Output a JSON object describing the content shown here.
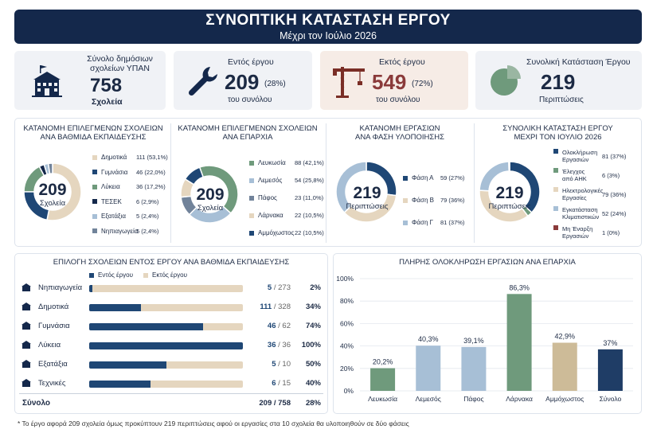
{
  "header": {
    "title": "ΣΥΝΟΠΤΙΚΗ ΚΑΤΑΣΤΑΣΗ ΕΡΓΟΥ",
    "subtitle": "Μέχρι τον Ιούλιο 2026"
  },
  "kpis": [
    {
      "label1": "Σύνολο δημόσιων",
      "label2": "σχολείων ΥΠΑΝ",
      "value": "758",
      "sub": "Σχολεία",
      "icon": "school-icon"
    },
    {
      "label": "Εντός έργου",
      "value": "209",
      "pct": "(28%)",
      "sub": "του συνόλου",
      "icon": "wrench-icon"
    },
    {
      "label": "Εκτός έργου",
      "value": "549",
      "pct": "(72%)",
      "sub": "του συνόλου",
      "icon": "crane-icon"
    },
    {
      "label": "Συνολική Κατάσταση Έργου",
      "value": "219",
      "sub": "Περιπτώσεις",
      "icon": "pie-icon"
    }
  ],
  "colors": {
    "navy": "#14284b",
    "blue": "#1f4775",
    "green": "#6f9a7c",
    "beige": "#e5d6bf",
    "lightblue": "#a7bfd6",
    "slate": "#71839a",
    "maroon": "#8a3a3a"
  },
  "donut_titles": [
    {
      "l1": "ΚΑΤΑΝΟΜΗ ΕΠΙΛΕΓΜΕΝΩΝ ΣΧΟΛΕΙΩΝ",
      "l2": "ΑΝΑ ΒΑΘΜΙΔΑ ΕΚΠΑΙΔΕΥΣΗΣ"
    },
    {
      "l1": "ΚΑΤΑΝΟΜΗ ΕΠΙΛΕΓΜΕΝΩΝ ΣΧΟΛΕΙΩΝ",
      "l2": "ΑΝΑ ΕΠΑΡΧΙΑ"
    },
    {
      "l1": "ΚΑΤΑΝΟΜΗ ΕΡΓΑΣΙΩΝ",
      "l2": "ΑΝΑ ΦΑΣΗ ΥΛΟΠΟΙΗΣΗΣ"
    },
    {
      "l1": "ΣΥΝΟΛΙΚΗ ΚΑΤΑΣΤΑΣΗ ΕΡΓΟΥ",
      "l2": "ΜΕΧΡΙ ΤΟΝ ΙΟΥΛΙΟ 2026"
    }
  ],
  "donut_centers": [
    {
      "n": "209",
      "u": "Σχολεία"
    },
    {
      "n": "209",
      "u": "Σχολεία"
    },
    {
      "n": "219",
      "u": "Περιπτώσεις"
    },
    {
      "n": "219",
      "u": "Περιπτώσεις"
    }
  ],
  "bars_panel": {
    "title": "ΕΠΙΛΟΓΗ ΣΧΟΛΕΙΩΝ ΕΝΤΟΣ ΕΡΓΟΥ ΑΝΑ ΒΑΘΜΙΔΑ ΕΚΠΑΙΔΕΥΣΗΣ",
    "legend_in": "Εντός έργου",
    "legend_out": "Εκτός έργου",
    "total_label": "Σύνολο",
    "total_frac": "209 / 758",
    "total_pct": "28%"
  },
  "column_panel": {
    "title": "ΠΛΗΡΗΣ ΟΛΟΚΛΗΡΩΣΗ ΕΡΓΑΣΙΩΝ ΑΝΑ ΕΠΑΡΧΙΑ"
  },
  "footnote": "* Το έργο αφορά 209 σχολεία όμως προκύπτουν 219 περιπτώσεις αφού οι εργασίες στα 10 σχολεία θα υλοποιηθούν σε δύο φάσεις",
  "chart_data": [
    {
      "type": "pie",
      "title": "ΚΑΤΑΝΟΜΗ ΕΠΙΛΕΓΜΕΝΩΝ ΣΧΟΛΕΙΩΝ ΑΝΑ ΒΑΘΜΙΔΑ ΕΚΠΑΙΔΕΥΣΗΣ",
      "slices": [
        {
          "label": "Δημοτικά",
          "value": 111,
          "text": "111 (53,1%)",
          "color": "#e5d6bf"
        },
        {
          "label": "Γυμνάσια",
          "value": 46,
          "text": "46 (22,0%)",
          "color": "#1f4775"
        },
        {
          "label": "Λύκεια",
          "value": 36,
          "text": "36 (17,2%)",
          "color": "#6f9a7c"
        },
        {
          "label": "ΤΕΣΕΚ",
          "value": 6,
          "text": "6 (2,9%)",
          "color": "#14284b"
        },
        {
          "label": "Εξατάξια",
          "value": 5,
          "text": "5 (2,4%)",
          "color": "#a7bfd6"
        },
        {
          "label": "Νηπιαγωγεία",
          "value": 5,
          "text": "5 (2,4%)",
          "color": "#71839a"
        }
      ]
    },
    {
      "type": "pie",
      "title": "ΚΑΤΑΝΟΜΗ ΕΠΙΛΕΓΜΕΝΩΝ ΣΧΟΛΕΙΩΝ ΑΝΑ ΕΠΑΡΧΙΑ",
      "slices": [
        {
          "label": "Λευκωσία",
          "value": 88,
          "text": "88 (42,1%)",
          "color": "#6f9a7c"
        },
        {
          "label": "Λεμεσός",
          "value": 54,
          "text": "54 (25,8%)",
          "color": "#a7bfd6"
        },
        {
          "label": "Πάφος",
          "value": 23,
          "text": "23 (11,0%)",
          "color": "#71839a"
        },
        {
          "label": "Λάρνακα",
          "value": 22,
          "text": "22 (10,5%)",
          "color": "#e5d6bf"
        },
        {
          "label": "Αμμόχωστος",
          "value": 22,
          "text": "22 (10,5%)",
          "color": "#1f4775"
        }
      ]
    },
    {
      "type": "pie",
      "title": "ΚΑΤΑΝΟΜΗ ΕΡΓΑΣΙΩΝ ΑΝΑ ΦΑΣΗ ΥΛΟΠΟΙΗΣΗΣ",
      "slices": [
        {
          "label": "Φάση Α",
          "value": 59,
          "text": "59 (27%)",
          "color": "#1f4775"
        },
        {
          "label": "Φάση Β",
          "value": 79,
          "text": "79 (36%)",
          "color": "#e5d6bf"
        },
        {
          "label": "Φάση Γ",
          "value": 81,
          "text": "81 (37%)",
          "color": "#a7bfd6"
        }
      ]
    },
    {
      "type": "pie",
      "title": "ΣΥΝΟΛΙΚΗ ΚΑΤΑΣΤΑΣΗ ΕΡΓΟΥ ΜΕΧΡΙ ΤΟΝ ΙΟΥΛΙΟ 2026",
      "slices": [
        {
          "label": "Ολοκληρωση Εργασιών",
          "l1": "Ολοκλήρωση",
          "l2": "Εργασιών",
          "value": 81,
          "text": "81 (37%)",
          "color": "#1f4775"
        },
        {
          "label": "Έλεγχος από ΑΗΚ",
          "l1": "Έλεγχος",
          "l2": "από ΑΗΚ",
          "value": 6,
          "text": "6 (3%)",
          "color": "#6f9a7c"
        },
        {
          "label": "Ηλεκτρολογικές Εργασίες",
          "l1": "Ηλεκτρολογικές",
          "l2": "Εργασίες",
          "value": 79,
          "text": "79 (36%)",
          "color": "#e5d6bf"
        },
        {
          "label": "Εγκατάσταση Κλιματιστικών",
          "l1": "Εγκατάσταση",
          "l2": "Κλιματιστικών",
          "value": 52,
          "text": "52 (24%)",
          "color": "#a7bfd6"
        },
        {
          "label": "Μη Έναρξη Εργασιών",
          "l1": "Μη Έναρξη",
          "l2": "Εργασιών",
          "value": 1,
          "text": "1 (0%)",
          "color": "#8a3a3a"
        }
      ]
    },
    {
      "type": "bar",
      "title": "ΕΠΙΛΟΓΗ ΣΧΟΛΕΙΩΝ ΕΝΤΟΣ ΕΡΓΟΥ ΑΝΑ ΒΑΘΜΙΔΑ ΕΚΠΑΙΔΕΥΣΗΣ",
      "orientation": "horizontal",
      "categories": [
        "Νηπιαγωγεία",
        "Δημοτικά",
        "Γυμνάσια",
        "Λύκεια",
        "Εξατάξια",
        "Τεχνικές"
      ],
      "icons": [
        "school-icon",
        "building-icon",
        "graduation-cap-icon",
        "book-icon",
        "person-icon",
        "gear-icon"
      ],
      "series": [
        {
          "name": "Εντός έργου",
          "values": [
            5,
            111,
            46,
            36,
            5,
            6
          ]
        },
        {
          "name": "Εκτός έργου",
          "values": [
            268,
            217,
            16,
            0,
            5,
            9
          ]
        }
      ],
      "totals": [
        273,
        328,
        62,
        36,
        10,
        15
      ],
      "frac_labels": [
        "5 / 273",
        "111 / 328",
        "46 / 62",
        "36 / 36",
        "5 / 10",
        "6 / 15"
      ],
      "pct_labels": [
        "2%",
        "34%",
        "74%",
        "100%",
        "50%",
        "40%"
      ]
    },
    {
      "type": "bar",
      "title": "ΠΛΗΡΗΣ ΟΛΟΚΛΗΡΩΣΗ ΕΡΓΑΣΙΩΝ ΑΝΑ ΕΠΑΡΧΙΑ",
      "categories": [
        "Λευκωσία",
        "Λεμεσός",
        "Πάφος",
        "Λάρνακα",
        "Αμμόχωστος",
        "Σύνολο"
      ],
      "values": [
        20.2,
        40.3,
        39.1,
        86.3,
        42.9,
        37
      ],
      "labels": [
        "20,2%",
        "40,3%",
        "39,1%",
        "86,3%",
        "42,9%",
        "37%"
      ],
      "colors": [
        "#6f9a7c",
        "#a7bfd6",
        "#a7bfd6",
        "#6f9a7c",
        "#cdbb98",
        "#1f3d66"
      ],
      "ylim": [
        0,
        100
      ],
      "yticks": [
        "0%",
        "20%",
        "40%",
        "60%",
        "80%",
        "100%"
      ]
    }
  ]
}
